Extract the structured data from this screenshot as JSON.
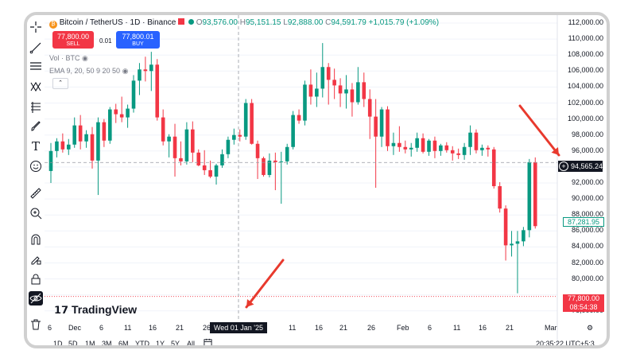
{
  "header": {
    "symbol": "Bitcoin / TetherUS · 1D · Binance",
    "o_label": "O",
    "o_value": "93,576.00",
    "h_label": "H",
    "h_value": "95,151.15",
    "l_label": "L",
    "l_value": "92,888.00",
    "c_label": "C",
    "c_value": "94,591.79",
    "change": "+1,015.79 (+1.09%)"
  },
  "trade": {
    "sell_price": "77,800.00",
    "sell_label": "SELL",
    "spread": "0.01",
    "buy_price": "77,800.01",
    "buy_label": "BUY"
  },
  "indicators": {
    "volume": "Vol · BTC",
    "ema": "EMA 9, 20, 50 9 20 50"
  },
  "logo_text": "TradingView",
  "yaxis": [
    "112,000.00",
    "110,000.00",
    "108,000.00",
    "106,000.00",
    "104,000.00",
    "102,000.00",
    "100,000.00",
    "98,000.00",
    "96,000.00",
    "92,000.00",
    "90,000.00",
    "88,000.00",
    "86,000.00",
    "84,000.00",
    "82,000.00",
    "80,000.00",
    "76,000.00"
  ],
  "xaxis": [
    "6",
    "Dec",
    "6",
    "11",
    "16",
    "21",
    "26",
    "6",
    "11",
    "16",
    "21",
    "26",
    "Feb",
    "6",
    "11",
    "16",
    "21",
    "Mar"
  ],
  "crosshair": {
    "date": "Wed 01 Jan '25",
    "price": "94,565.24"
  },
  "price_labels": {
    "ema": "87,281.95",
    "last": "77,800.00",
    "countdown": "08:54:38"
  },
  "timeframes": [
    "1D",
    "5D",
    "1M",
    "3M",
    "6M",
    "YTD",
    "1Y",
    "5Y",
    "All"
  ],
  "clock": "20:35:22 UTC+5:3",
  "colors": {
    "up": "#089981",
    "down": "#f23645",
    "sell": "#f23645",
    "buy": "#2962ff",
    "arrow": "#e8392d"
  },
  "chart_data": {
    "type": "candlestick",
    "ylim": [
      76000,
      112000
    ],
    "candles": [
      {
        "o": 93500,
        "h": 97000,
        "l": 92000,
        "c": 96000
      },
      {
        "o": 96000,
        "h": 97600,
        "l": 95200,
        "c": 97200
      },
      {
        "o": 97200,
        "h": 98200,
        "l": 95800,
        "c": 96200
      },
      {
        "o": 96200,
        "h": 97500,
        "l": 95500,
        "c": 96800
      },
      {
        "o": 96800,
        "h": 100200,
        "l": 96400,
        "c": 99200
      },
      {
        "o": 99200,
        "h": 100500,
        "l": 96200,
        "c": 97200
      },
      {
        "o": 97200,
        "h": 98600,
        "l": 96400,
        "c": 98100
      },
      {
        "o": 98100,
        "h": 99000,
        "l": 93800,
        "c": 94800
      },
      {
        "o": 94800,
        "h": 100200,
        "l": 90500,
        "c": 99600
      },
      {
        "o": 99600,
        "h": 100000,
        "l": 96500,
        "c": 97300
      },
      {
        "o": 97300,
        "h": 101500,
        "l": 96900,
        "c": 101200
      },
      {
        "o": 101200,
        "h": 101900,
        "l": 99500,
        "c": 100600
      },
      {
        "o": 100600,
        "h": 102800,
        "l": 99600,
        "c": 100200
      },
      {
        "o": 100200,
        "h": 101800,
        "l": 98900,
        "c": 101300
      },
      {
        "o": 101300,
        "h": 105500,
        "l": 100800,
        "c": 104800
      },
      {
        "o": 104800,
        "h": 107000,
        "l": 103000,
        "c": 106200
      },
      {
        "o": 106200,
        "h": 107800,
        "l": 104700,
        "c": 106000
      },
      {
        "o": 106000,
        "h": 108400,
        "l": 103500,
        "c": 106800
      },
      {
        "o": 106800,
        "h": 107500,
        "l": 99800,
        "c": 100200
      },
      {
        "o": 100200,
        "h": 101200,
        "l": 96700,
        "c": 97200
      },
      {
        "o": 97200,
        "h": 98100,
        "l": 95200,
        "c": 97800
      },
      {
        "o": 97800,
        "h": 99400,
        "l": 92800,
        "c": 95100
      },
      {
        "o": 95100,
        "h": 97200,
        "l": 94200,
        "c": 94700
      },
      {
        "o": 94700,
        "h": 99600,
        "l": 94300,
        "c": 98700
      },
      {
        "o": 98700,
        "h": 99700,
        "l": 94600,
        "c": 95800
      },
      {
        "o": 95800,
        "h": 96200,
        "l": 94100,
        "c": 94200
      },
      {
        "o": 94200,
        "h": 96100,
        "l": 93000,
        "c": 93600
      },
      {
        "o": 93600,
        "h": 94800,
        "l": 92600,
        "c": 92800
      },
      {
        "o": 92800,
        "h": 94400,
        "l": 91800,
        "c": 94200
      },
      {
        "o": 94200,
        "h": 96200,
        "l": 93900,
        "c": 95600
      },
      {
        "o": 95600,
        "h": 97800,
        "l": 95100,
        "c": 97400
      },
      {
        "o": 97400,
        "h": 98800,
        "l": 96800,
        "c": 98000
      },
      {
        "o": 98000,
        "h": 98700,
        "l": 97200,
        "c": 97800
      },
      {
        "o": 97800,
        "h": 102500,
        "l": 97400,
        "c": 102000
      },
      {
        "o": 102000,
        "h": 102500,
        "l": 96800,
        "c": 96900
      },
      {
        "o": 96900,
        "h": 97300,
        "l": 92500,
        "c": 95100
      },
      {
        "o": 95100,
        "h": 95300,
        "l": 92800,
        "c": 93000
      },
      {
        "o": 93000,
        "h": 95700,
        "l": 92700,
        "c": 94800
      },
      {
        "o": 94800,
        "h": 95800,
        "l": 91100,
        "c": 94600
      },
      {
        "o": 94600,
        "h": 95900,
        "l": 89400,
        "c": 94700
      },
      {
        "o": 94700,
        "h": 96900,
        "l": 94300,
        "c": 96500
      },
      {
        "o": 96500,
        "h": 101000,
        "l": 96200,
        "c": 100500
      },
      {
        "o": 100500,
        "h": 101200,
        "l": 99400,
        "c": 99800
      },
      {
        "o": 99800,
        "h": 104800,
        "l": 99200,
        "c": 104300
      },
      {
        "o": 104300,
        "h": 106200,
        "l": 101800,
        "c": 102800
      },
      {
        "o": 102800,
        "h": 105800,
        "l": 101500,
        "c": 103800
      },
      {
        "o": 103800,
        "h": 109500,
        "l": 102700,
        "c": 106500
      },
      {
        "o": 106500,
        "h": 107000,
        "l": 101800,
        "c": 104900
      },
      {
        "o": 104900,
        "h": 106300,
        "l": 102500,
        "c": 104200
      },
      {
        "o": 104200,
        "h": 105100,
        "l": 101500,
        "c": 103200
      },
      {
        "o": 103200,
        "h": 105500,
        "l": 101300,
        "c": 103700
      },
      {
        "o": 103700,
        "h": 104500,
        "l": 100300,
        "c": 102100
      },
      {
        "o": 102100,
        "h": 106500,
        "l": 101800,
        "c": 104600
      },
      {
        "o": 104600,
        "h": 105800,
        "l": 101500,
        "c": 102500
      },
      {
        "o": 102500,
        "h": 103700,
        "l": 97500,
        "c": 100300
      },
      {
        "o": 100300,
        "h": 102500,
        "l": 91400,
        "c": 97800
      },
      {
        "o": 97800,
        "h": 101500,
        "l": 96500,
        "c": 101200
      },
      {
        "o": 101200,
        "h": 101600,
        "l": 96000,
        "c": 96600
      },
      {
        "o": 96600,
        "h": 98300,
        "l": 95500,
        "c": 97000
      },
      {
        "o": 97000,
        "h": 99100,
        "l": 95900,
        "c": 96500
      },
      {
        "o": 96500,
        "h": 97300,
        "l": 95700,
        "c": 96200
      },
      {
        "o": 96200,
        "h": 97000,
        "l": 95300,
        "c": 96400
      },
      {
        "o": 96400,
        "h": 98300,
        "l": 95900,
        "c": 97600
      },
      {
        "o": 97600,
        "h": 98200,
        "l": 95700,
        "c": 95900
      },
      {
        "o": 95900,
        "h": 97500,
        "l": 95400,
        "c": 97300
      },
      {
        "o": 97300,
        "h": 97800,
        "l": 95100,
        "c": 96000
      },
      {
        "o": 96000,
        "h": 96900,
        "l": 95400,
        "c": 96700
      },
      {
        "o": 96700,
        "h": 97100,
        "l": 95800,
        "c": 96100
      },
      {
        "o": 96100,
        "h": 96600,
        "l": 94800,
        "c": 95700
      },
      {
        "o": 95700,
        "h": 96300,
        "l": 95000,
        "c": 95500
      },
      {
        "o": 95500,
        "h": 97000,
        "l": 94900,
        "c": 96500
      },
      {
        "o": 96500,
        "h": 99200,
        "l": 95500,
        "c": 98300
      },
      {
        "o": 98300,
        "h": 98700,
        "l": 95700,
        "c": 96100
      },
      {
        "o": 96100,
        "h": 96800,
        "l": 95400,
        "c": 96400
      },
      {
        "o": 96400,
        "h": 96700,
        "l": 95300,
        "c": 96200
      },
      {
        "o": 96200,
        "h": 96500,
        "l": 91300,
        "c": 91600
      },
      {
        "o": 91600,
        "h": 92100,
        "l": 88300,
        "c": 88800
      },
      {
        "o": 88800,
        "h": 89200,
        "l": 82300,
        "c": 84200
      },
      {
        "o": 84200,
        "h": 86000,
        "l": 82800,
        "c": 84400
      },
      {
        "o": 84400,
        "h": 86000,
        "l": 78200,
        "c": 84700
      },
      {
        "o": 84700,
        "h": 86500,
        "l": 84100,
        "c": 86100
      },
      {
        "o": 86100,
        "h": 95000,
        "l": 85200,
        "c": 94600
      },
      {
        "o": 94600,
        "h": 95200,
        "l": 86300,
        "c": 86600
      }
    ]
  }
}
